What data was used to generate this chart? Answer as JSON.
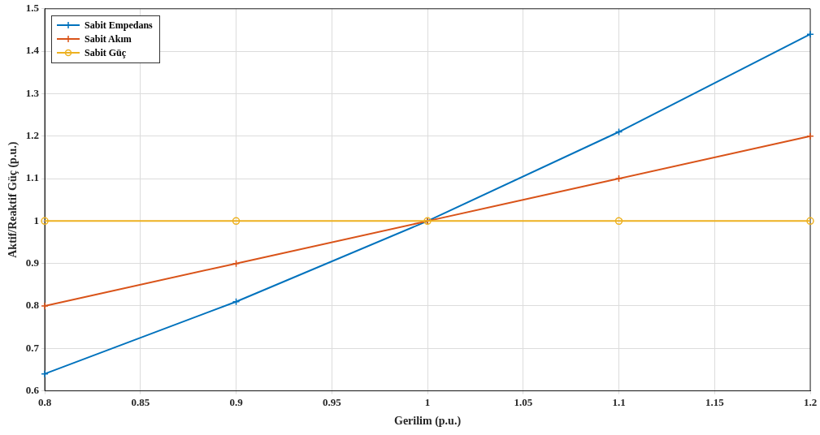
{
  "chart_data": {
    "type": "line",
    "xlabel": "Gerilim (p.u.)",
    "ylabel": "Aktif/Reaktif Güç (p.u.)",
    "x": [
      0.8,
      0.9,
      1,
      1.1,
      1.2
    ],
    "series": [
      {
        "name": "Sabit Empedans",
        "color": "#0072bd",
        "marker": "cross",
        "values": [
          0.64,
          0.81,
          1,
          1.21,
          1.44
        ]
      },
      {
        "name": "Sabit Akım",
        "color": "#d95319",
        "marker": "cross",
        "values": [
          0.8,
          0.9,
          1,
          1.1,
          1.2
        ]
      },
      {
        "name": "Sabit Güç",
        "color": "#edb120",
        "marker": "circle",
        "values": [
          1,
          1,
          1,
          1,
          1
        ]
      }
    ],
    "xlim": [
      0.8,
      1.2
    ],
    "xticks": [
      0.8,
      0.85,
      0.9,
      0.95,
      1,
      1.05,
      1.1,
      1.15,
      1.2
    ],
    "ylim": [
      0.6,
      1.5
    ],
    "yticks": [
      0.6,
      0.7,
      0.8,
      0.9,
      1,
      1.1,
      1.2,
      1.3,
      1.4,
      1.5
    ],
    "grid": true,
    "legend": "top left",
    "line_style": "solid"
  }
}
